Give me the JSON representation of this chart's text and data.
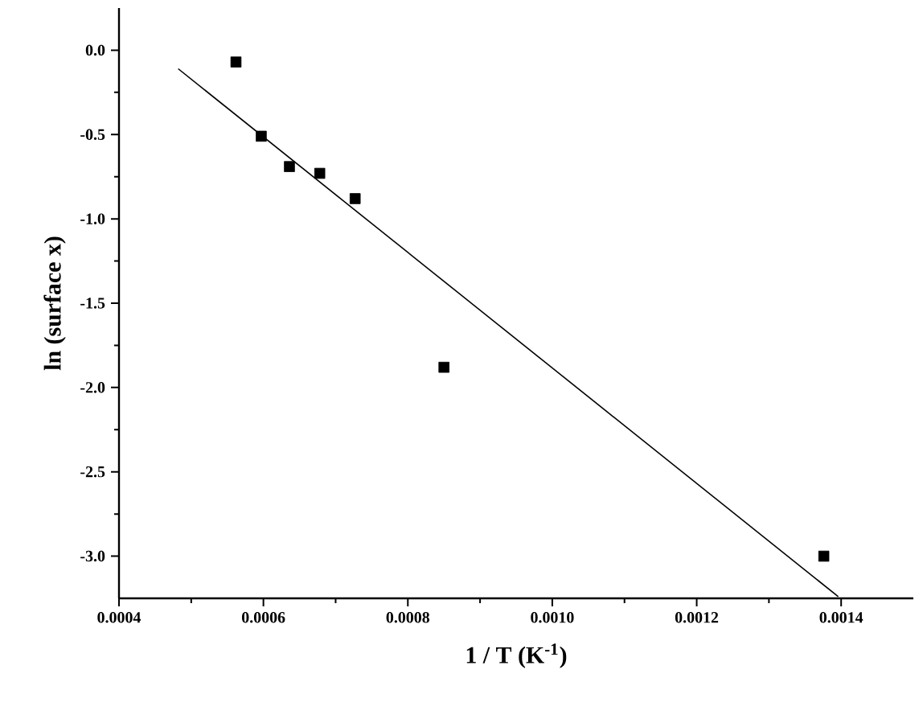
{
  "chart_data": {
    "type": "scatter",
    "xlabel": "1 / T  (K$^{-1}$)",
    "ylabel": "ln (surface x)",
    "xlim": [
      0.0004,
      0.0015
    ],
    "ylim": [
      -3.25,
      0.25
    ],
    "xticks": [
      {
        "value": 0.0004,
        "label": "0.0004"
      },
      {
        "value": 0.0006,
        "label": "0.0006"
      },
      {
        "value": 0.0008,
        "label": "0.0008"
      },
      {
        "value": 0.001,
        "label": "0.0010"
      },
      {
        "value": 0.0012,
        "label": "0.0012"
      },
      {
        "value": 0.0014,
        "label": "0.0014"
      }
    ],
    "yticks": [
      {
        "value": 0,
        "label": "0.0"
      },
      {
        "value": -0.5,
        "label": "-0.5"
      },
      {
        "value": -1,
        "label": "-1.0"
      },
      {
        "value": -1.5,
        "label": "-1.5"
      },
      {
        "value": -2,
        "label": "-2.0"
      },
      {
        "value": -2.5,
        "label": "-2.5"
      },
      {
        "value": -3,
        "label": "-3.0"
      }
    ],
    "series": [
      {
        "marker": "square",
        "color": "#000000",
        "x": [
          0.000562,
          0.000597,
          0.000636,
          0.000678,
          0.000727,
          0.00085,
          0.001376
        ],
        "values": [
          -0.07,
          -0.51,
          -0.69,
          -0.73,
          -0.88,
          -1.88,
          -3.0
        ]
      },
      {
        "type": "line",
        "marker": "none",
        "line_style": "solid",
        "color": "#000000",
        "x": [
          0.000482,
          0.001396
        ],
        "values": [
          -0.11,
          -3.24
        ]
      }
    ]
  }
}
